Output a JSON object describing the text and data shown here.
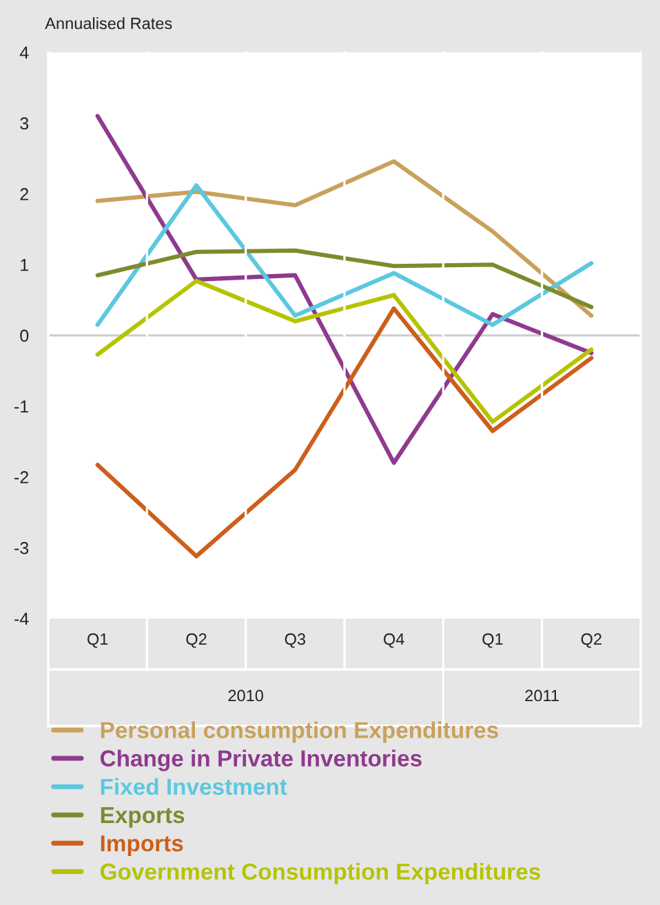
{
  "chart_data": {
    "type": "line",
    "ylabel": "Annualised Rates",
    "categories": [
      "Q1",
      "Q2",
      "Q3",
      "Q4",
      "Q1",
      "Q2"
    ],
    "annotations": [
      "2010",
      "2011"
    ],
    "ylim": [
      -4,
      4
    ],
    "yticks": [
      -4,
      -3,
      -2,
      -1,
      0,
      1,
      2,
      3,
      4
    ],
    "grid": false,
    "legend": "bottom",
    "marker": "none",
    "line_style": "solid",
    "ref_lines": [
      {
        "axis": "y",
        "value": 0,
        "color": "#cccccc"
      }
    ],
    "series": [
      {
        "name": "Personal consumption Expenditures",
        "color": "#c9a15b",
        "values": [
          1.9,
          2.03,
          1.84,
          2.46,
          1.47,
          0.28
        ]
      },
      {
        "name": "Change in Private Inventories",
        "color": "#8e3a8e",
        "values": [
          3.1,
          0.79,
          0.85,
          -1.8,
          0.3,
          -0.25
        ]
      },
      {
        "name": "Fixed Investment",
        "color": "#5bc8e0",
        "values": [
          0.15,
          2.12,
          0.28,
          0.88,
          0.15,
          1.02
        ]
      },
      {
        "name": "Exports",
        "color": "#7d8b2e",
        "values": [
          0.85,
          1.18,
          1.2,
          0.98,
          1.0,
          0.4
        ]
      },
      {
        "name": "Imports",
        "color": "#cc5f1a",
        "values": [
          -1.83,
          -3.12,
          -1.9,
          0.38,
          -1.35,
          -0.32
        ]
      },
      {
        "name": "Government Consumption Expenditures",
        "color": "#b5c400",
        "values": [
          -0.27,
          0.77,
          0.2,
          0.57,
          -1.22,
          -0.2
        ]
      }
    ]
  }
}
